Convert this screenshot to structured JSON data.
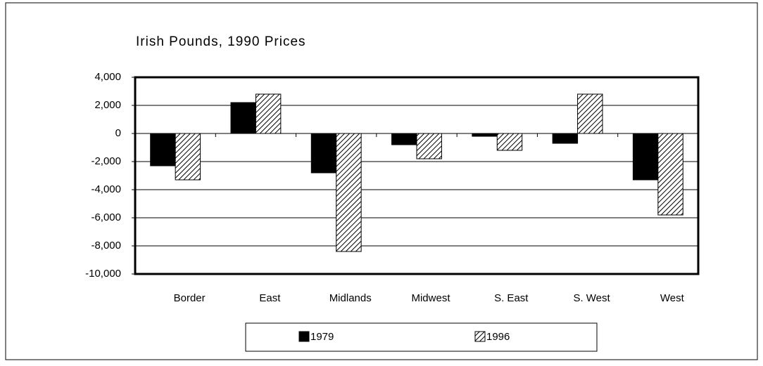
{
  "chart_data": {
    "type": "bar",
    "title": "Irish Pounds, 1990 Prices",
    "categories": [
      "Border",
      "East",
      "Midlands",
      "Midwest",
      "S. East",
      "S. West",
      "West"
    ],
    "series": [
      {
        "name": "1979",
        "color": "#000000",
        "pattern": "solid",
        "values": [
          -2300,
          2200,
          -2800,
          -800,
          -200,
          -700,
          -3300
        ]
      },
      {
        "name": "1996",
        "color": "#000000",
        "pattern": "hatch",
        "values": [
          -3300,
          2800,
          -8400,
          -1800,
          -1200,
          2800,
          -5800
        ]
      }
    ],
    "ylim": [
      -10000,
      4000
    ],
    "yticks": [
      {
        "value": -10000,
        "label": "-10,000"
      },
      {
        "value": -8000,
        "label": "-8,000"
      },
      {
        "value": -6000,
        "label": "-6,000"
      },
      {
        "value": -4000,
        "label": "-4,000"
      },
      {
        "value": -2000,
        "label": "-2,000"
      },
      0,
      {
        "value": 2000,
        "label": "2,000"
      },
      {
        "value": 4000,
        "label": "4,000"
      }
    ],
    "grid": true,
    "legend": "bottom"
  }
}
